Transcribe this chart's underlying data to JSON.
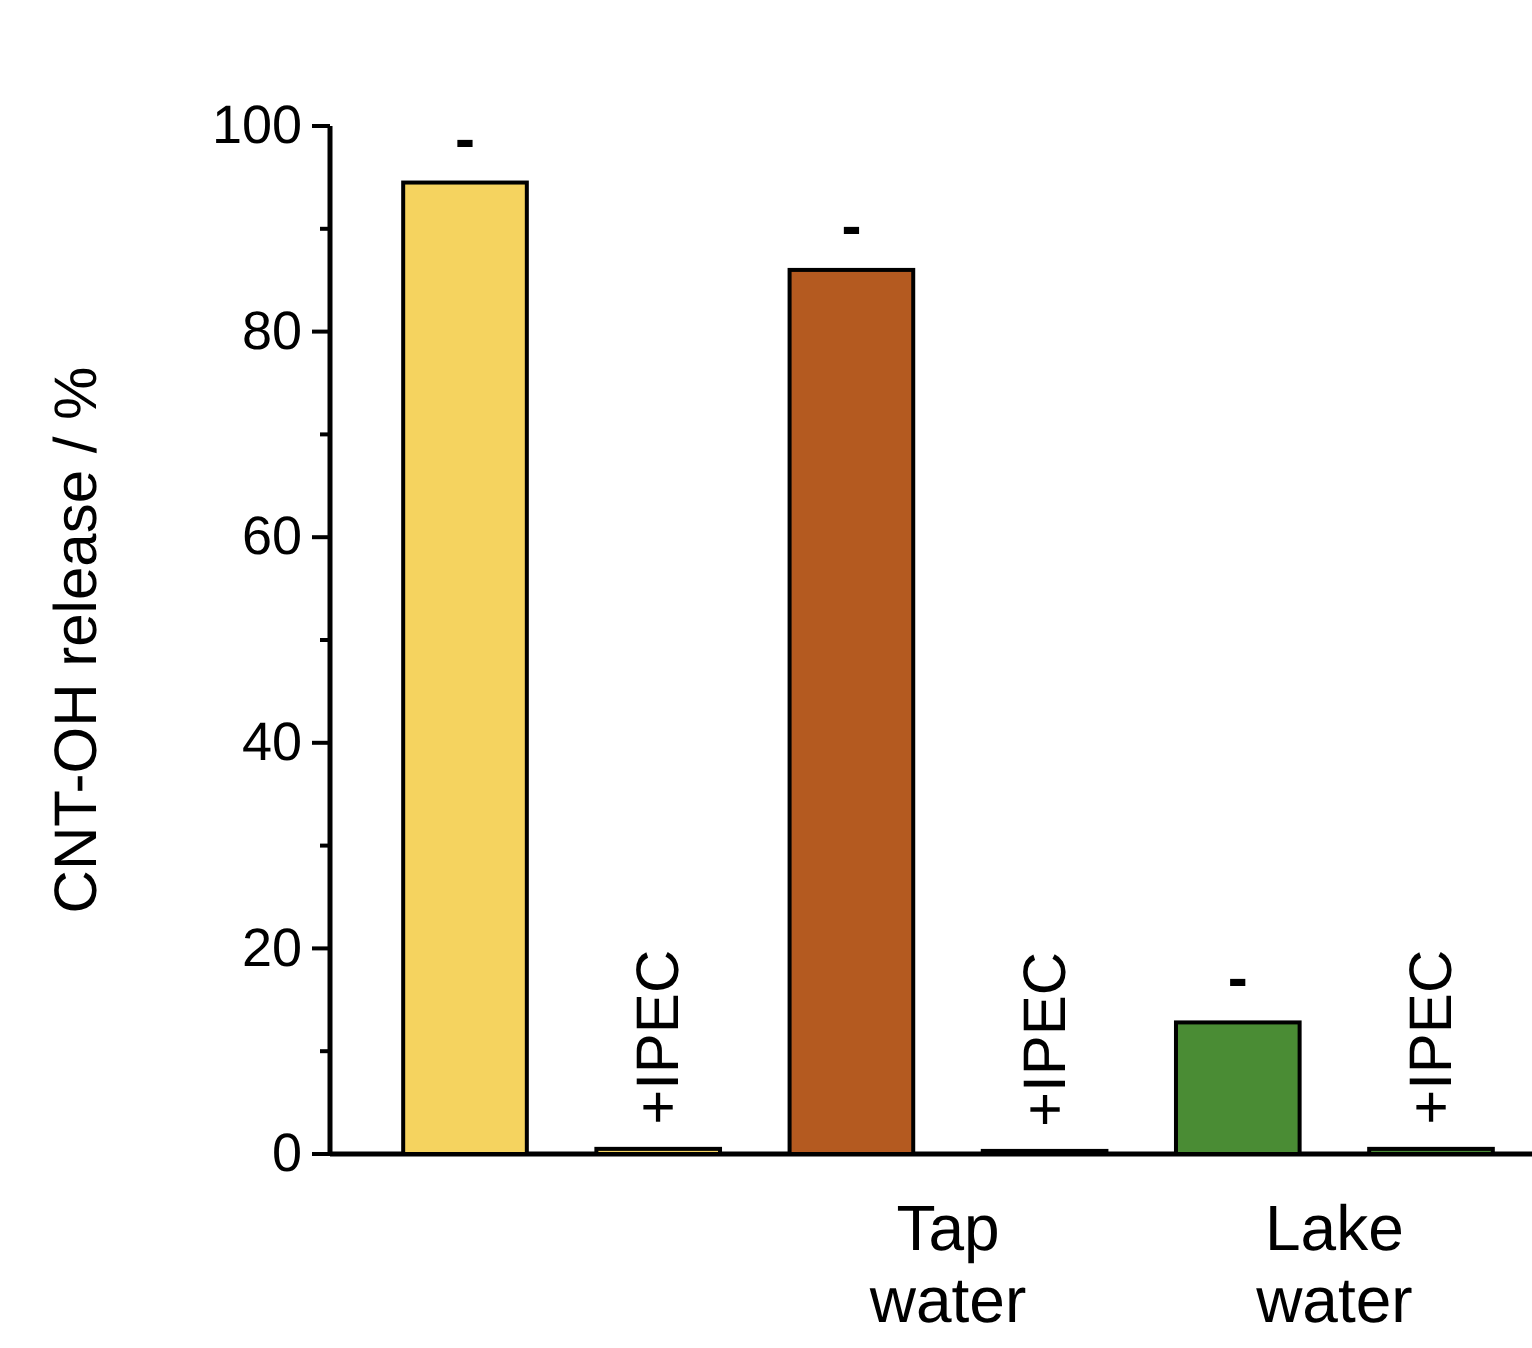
{
  "chart_data": {
    "type": "bar",
    "ylabel": "CNT-OH release / %",
    "categories": [
      "-",
      "+IPEC",
      "-",
      "+IPEC",
      "-",
      "+IPEC"
    ],
    "values": [
      94.5,
      0.5,
      86,
      0.3,
      12.8,
      0.5
    ],
    "colors": [
      "#f5d35f",
      "#f5d35f",
      "#b45a20",
      "#b45a20",
      "#4a8c34",
      "#4a8c34"
    ],
    "ylim": [
      0,
      100
    ],
    "yticks": [
      0,
      {
        "value": 10,
        "label": null
      },
      20,
      {
        "value": 30,
        "label": null
      },
      40,
      {
        "value": 50,
        "label": null
      },
      60,
      {
        "value": 70,
        "label": null
      },
      80,
      {
        "value": 90,
        "label": null
      },
      100
    ],
    "annotations": [
      "Tap water",
      "Lake water"
    ]
  }
}
